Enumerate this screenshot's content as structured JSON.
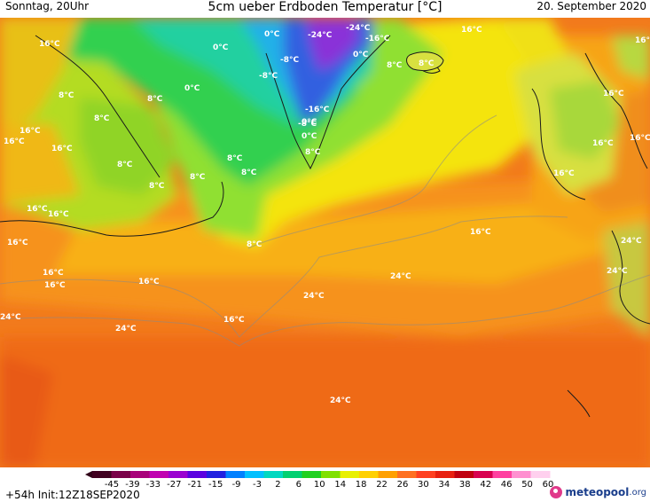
{
  "header": {
    "left": "Sonntag, 20Uhr",
    "title": "5cm ueber Erdboden Temperatur [°C]",
    "right": "20. September 2020"
  },
  "footer": {
    "run_info": "+54h  Init:12Z18SEP2020",
    "logo_main": "meteopool",
    "logo_tld": ".org"
  },
  "legend": {
    "ticks": [
      "-45",
      "-39",
      "-33",
      "-27",
      "-21",
      "-15",
      "-9",
      "-3",
      "2",
      "6",
      "10",
      "14",
      "18",
      "22",
      "26",
      "30",
      "34",
      "38",
      "42",
      "46",
      "50",
      "60"
    ],
    "colors": [
      "#400020",
      "#7a0048",
      "#a8007a",
      "#c000b0",
      "#9a00d0",
      "#5a00e0",
      "#2020e0",
      "#0080ff",
      "#00c0ff",
      "#00d8c0",
      "#00d070",
      "#20d020",
      "#80e000",
      "#e8f000",
      "#ffd000",
      "#ffa000",
      "#ff7020",
      "#ff4020",
      "#e82010",
      "#c00010",
      "#d80050",
      "#ff40a0",
      "#ff90d0",
      "#ffd0ee"
    ]
  },
  "map_labels": [
    {
      "text": "16°C"
    },
    {
      "text": "0°C"
    },
    {
      "text": "0°C"
    },
    {
      "text": "-24°C"
    },
    {
      "text": "-24°C"
    },
    {
      "text": "-16°C"
    },
    {
      "text": "0°C"
    },
    {
      "text": "8°C"
    },
    {
      "text": "8°C"
    },
    {
      "text": "16°C"
    },
    {
      "text": "-8°C"
    },
    {
      "text": "-8°C"
    },
    {
      "text": "0°C"
    },
    {
      "text": "8°C"
    },
    {
      "text": "8°C"
    },
    {
      "text": "8°C"
    },
    {
      "text": "0°C"
    },
    {
      "text": "8°C"
    },
    {
      "text": "8°C"
    },
    {
      "text": "-16°C"
    },
    {
      "text": "-8°C"
    },
    {
      "text": "0°C"
    },
    {
      "text": "8°C"
    },
    {
      "text": "16°C"
    },
    {
      "text": "16°C"
    },
    {
      "text": "16°C"
    },
    {
      "text": "16°C"
    },
    {
      "text": "8°C"
    },
    {
      "text": "8°C"
    },
    {
      "text": "8°C"
    },
    {
      "text": "16°C"
    },
    {
      "text": "16°C"
    },
    {
      "text": "16°C"
    },
    {
      "text": "16°C"
    },
    {
      "text": "8°C"
    },
    {
      "text": "16°C"
    },
    {
      "text": "16°C"
    },
    {
      "text": "16°C"
    },
    {
      "text": "16°C"
    },
    {
      "text": "16°C"
    },
    {
      "text": "16°C"
    },
    {
      "text": "16°C"
    },
    {
      "text": "24°C"
    },
    {
      "text": "24°C"
    },
    {
      "text": "16°C"
    },
    {
      "text": "24°C"
    },
    {
      "text": "24°C"
    },
    {
      "text": "24°C"
    },
    {
      "text": "24°C"
    },
    {
      "text": "24°C"
    }
  ]
}
